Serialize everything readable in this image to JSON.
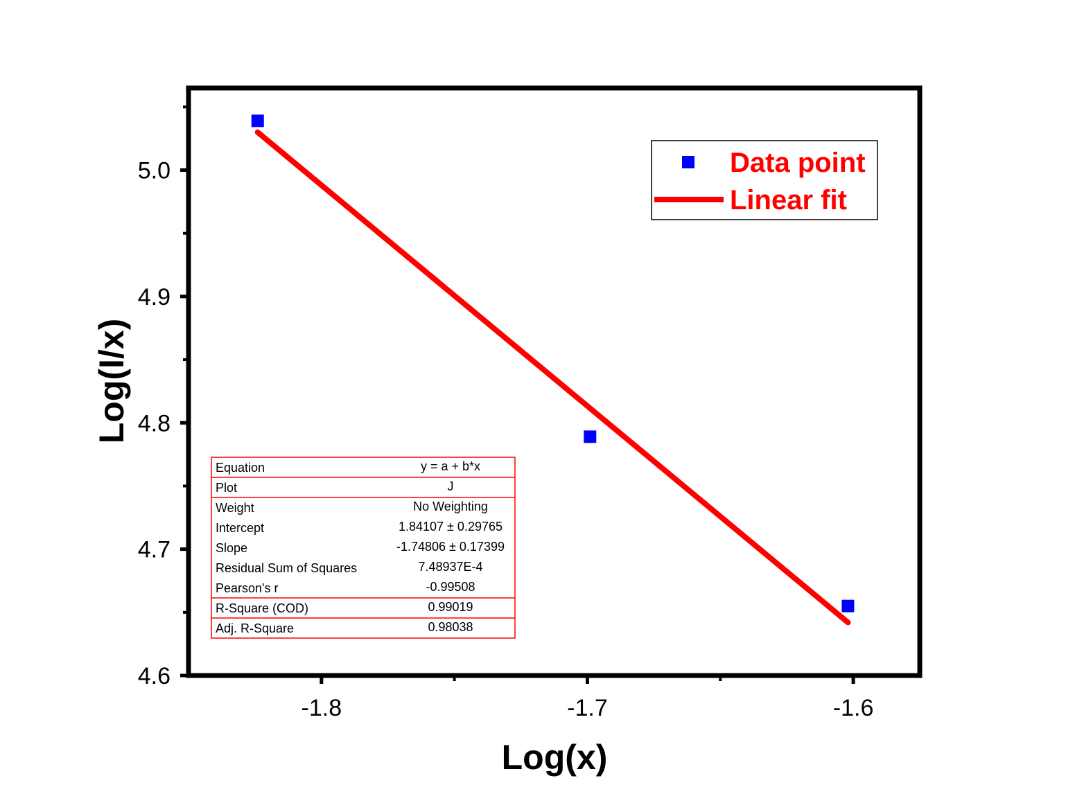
{
  "chart_data": {
    "type": "scatter",
    "xlabel": "Log(x)",
    "ylabel": "Log(I/x)",
    "xlim": [
      -1.85,
      -1.575
    ],
    "ylim": [
      4.6,
      5.065
    ],
    "xticks": [
      -1.8,
      -1.7,
      -1.6
    ],
    "yticks": [
      4.6,
      4.7,
      4.8,
      4.9,
      5.0
    ],
    "xtick_labels": [
      "-1.8",
      "-1.7",
      "-1.6"
    ],
    "ytick_labels": [
      "4.6",
      "4.7",
      "4.8",
      "4.9",
      "5.0"
    ],
    "grid": false,
    "legend_position": "top-right",
    "series": [
      {
        "name": "Data point",
        "type": "scatter",
        "marker": "square",
        "color": "#0000ff",
        "x": [
          -1.824,
          -1.699,
          -1.602
        ],
        "y": [
          5.039,
          4.789,
          4.655
        ]
      },
      {
        "name": "Linear fit",
        "type": "line",
        "color": "#ff0000",
        "x": [
          -1.824,
          -1.602
        ],
        "y": [
          5.03,
          4.642
        ]
      }
    ],
    "fit_stats": [
      {
        "label": "Equation",
        "value": "y = a + b*x"
      },
      {
        "label": "Plot",
        "value": "J"
      },
      {
        "label": "Weight",
        "value": "No Weighting"
      },
      {
        "label": "Intercept",
        "value": "1.84107 ± 0.29765"
      },
      {
        "label": "Slope",
        "value": "-1.74806 ± 0.17399"
      },
      {
        "label": "Residual Sum of Squares",
        "value": "7.48937E-4"
      },
      {
        "label": "Pearson's r",
        "value": "-0.99508"
      },
      {
        "label": "R-Square (COD)",
        "value": "0.99019"
      },
      {
        "label": "Adj. R-Square",
        "value": "0.98038"
      }
    ]
  }
}
